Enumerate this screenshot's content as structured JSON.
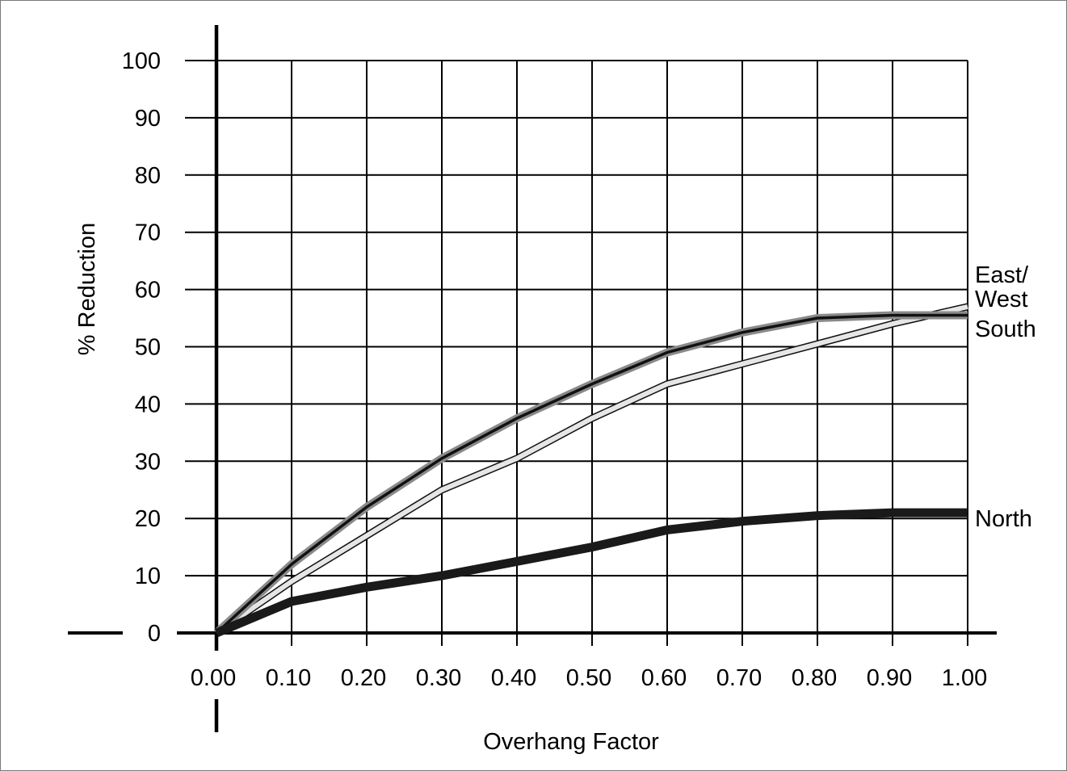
{
  "chart_data": {
    "type": "line",
    "title": "",
    "xlabel": "Overhang Factor",
    "ylabel": "% Reduction",
    "x": [
      0.0,
      0.1,
      0.2,
      0.3,
      0.4,
      0.5,
      0.6,
      0.7,
      0.8,
      0.9,
      1.0
    ],
    "x_tick_labels": [
      "0.00",
      "0.10",
      "0.20",
      "0.30",
      "0.40",
      "0.50",
      "0.60",
      "0.70",
      "0.80",
      "0.90",
      "1.00"
    ],
    "y_tick_labels": [
      "0",
      "10",
      "20",
      "30",
      "40",
      "50",
      "60",
      "70",
      "80",
      "90",
      "100"
    ],
    "xlim": [
      0.0,
      1.0
    ],
    "ylim": [
      0,
      100
    ],
    "grid": true,
    "legend": "labels at right end of lines",
    "series": [
      {
        "name": "South",
        "style": "dark-gray-with-black-core",
        "values": [
          0,
          12,
          22,
          30.5,
          37.5,
          43.5,
          49,
          52.5,
          55,
          55.5,
          55.5
        ]
      },
      {
        "name": "East/\nWest",
        "label_lines": [
          "East/",
          "West"
        ],
        "style": "light-gray-outlined",
        "values": [
          0,
          9,
          17,
          25,
          30.5,
          37.5,
          43.5,
          47,
          50.5,
          54,
          57
        ]
      },
      {
        "name": "North",
        "style": "thick-black",
        "values": [
          0,
          5.5,
          8,
          10,
          12.5,
          15,
          18,
          19.5,
          20.5,
          21,
          21
        ]
      }
    ]
  },
  "colors": {
    "frame": "#7a7a7a",
    "grid": "#000000",
    "south_outer": "#8a8a8a",
    "south_inner": "#111111",
    "eastwest_fill": "#e6e6e6",
    "eastwest_edge": "#111111",
    "north": "#1a1a1a"
  }
}
